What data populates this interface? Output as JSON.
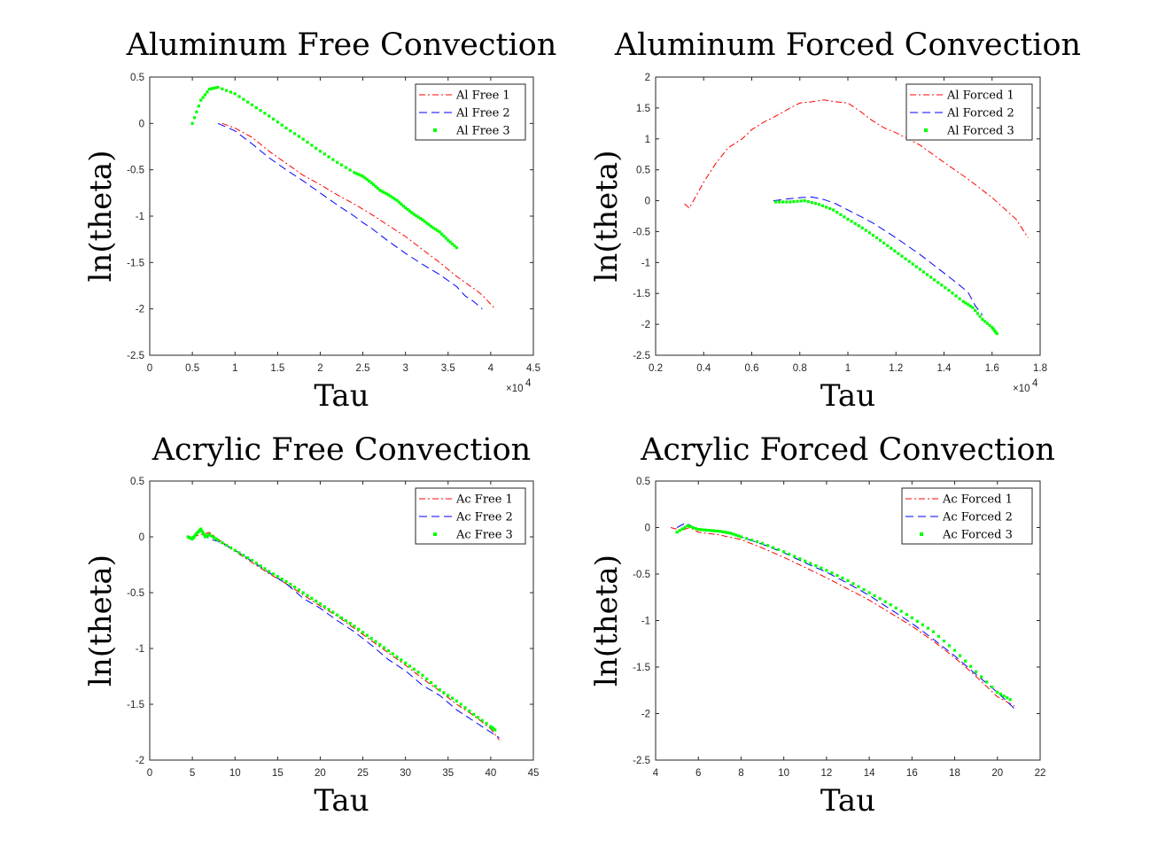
{
  "chart_data": [
    {
      "type": "line",
      "title": "Aluminum Free Convection",
      "xlabel": "Tau",
      "ylabel": "ln(theta)",
      "xlim": [
        0,
        45000
      ],
      "ylim": [
        -2.5,
        0.5
      ],
      "x_ticks": [
        0,
        5000,
        10000,
        15000,
        20000,
        25000,
        30000,
        35000,
        40000,
        45000
      ],
      "x_tick_labels": [
        "0",
        "0.5",
        "1",
        "1.5",
        "2",
        "2.5",
        "3",
        "3.5",
        "4",
        "4.5"
      ],
      "y_ticks": [
        -2.5,
        -2,
        -1.5,
        -1,
        -0.5,
        0,
        0.5
      ],
      "y_tick_labels": [
        "-2.5",
        "-2",
        "-1.5",
        "-1",
        "-0.5",
        "0",
        "0.5"
      ],
      "x_exponent": "×10",
      "x_exponent_power": "4",
      "legend_position": "top-right",
      "series": [
        {
          "name": "Al Free 1",
          "style": "dashdot",
          "color": "#ff0000",
          "x": [
            8500,
            10000,
            12000,
            14000,
            16000,
            18000,
            20000,
            22000,
            24000,
            26000,
            28000,
            30000,
            32000,
            34000,
            36000,
            38000,
            39000,
            40000,
            40500
          ],
          "y": [
            0,
            -0.05,
            -0.15,
            -0.3,
            -0.43,
            -0.56,
            -0.66,
            -0.77,
            -0.87,
            -0.98,
            -1.1,
            -1.22,
            -1.36,
            -1.5,
            -1.65,
            -1.78,
            -1.85,
            -1.95,
            -2.0
          ]
        },
        {
          "name": "Al Free 2",
          "style": "dashed",
          "color": "#0000ff",
          "x": [
            8000,
            10000,
            12000,
            14000,
            16000,
            18000,
            20000,
            22000,
            24000,
            25000,
            26000,
            28000,
            30000,
            32000,
            34000,
            36000,
            37000,
            38000,
            39000
          ],
          "y": [
            0,
            -0.08,
            -0.22,
            -0.37,
            -0.5,
            -0.62,
            -0.75,
            -0.88,
            -1.0,
            -1.07,
            -1.13,
            -1.27,
            -1.4,
            -1.52,
            -1.63,
            -1.76,
            -1.86,
            -1.92,
            -2.0
          ]
        },
        {
          "name": "Al Free 3",
          "style": "markers",
          "color": "#00ff00",
          "x": [
            5000,
            6000,
            7000,
            8000,
            10000,
            12000,
            14000,
            16000,
            18000,
            20000,
            22000,
            24000,
            25000,
            26000,
            27000,
            28000,
            29000,
            30000,
            31000,
            32000,
            33000,
            34000,
            35000,
            36000
          ],
          "y": [
            0,
            0.25,
            0.37,
            0.39,
            0.32,
            0.2,
            0.08,
            -0.05,
            -0.17,
            -0.3,
            -0.42,
            -0.53,
            -0.57,
            -0.64,
            -0.72,
            -0.77,
            -0.83,
            -0.91,
            -0.98,
            -1.04,
            -1.11,
            -1.17,
            -1.26,
            -1.34
          ]
        }
      ]
    },
    {
      "type": "line",
      "title": "Aluminum Forced Convection",
      "xlabel": "Tau",
      "ylabel": "ln(theta)",
      "xlim": [
        2000,
        18000
      ],
      "ylim": [
        -2.5,
        2
      ],
      "x_ticks": [
        2000,
        4000,
        6000,
        8000,
        10000,
        12000,
        14000,
        16000,
        18000
      ],
      "x_tick_labels": [
        "0.2",
        "0.4",
        "0.6",
        "0.8",
        "1",
        "1.2",
        "1.4",
        "1.6",
        "1.8"
      ],
      "y_ticks": [
        -2.5,
        -2,
        -1.5,
        -1,
        -0.5,
        0,
        0.5,
        1,
        1.5,
        2
      ],
      "y_tick_labels": [
        "-2.5",
        "-2",
        "-1.5",
        "-1",
        "-0.5",
        "0",
        "0.5",
        "1",
        "1.5",
        "2"
      ],
      "x_exponent": "×10",
      "x_exponent_power": "4",
      "legend_position": "top-right",
      "series": [
        {
          "name": "Al Forced 1",
          "style": "dashdot",
          "color": "#ff0000",
          "x": [
            3200,
            3400,
            4000,
            4500,
            5000,
            5600,
            6000,
            6500,
            7000,
            7600,
            8000,
            8500,
            9000,
            9500,
            10000,
            10500,
            11000,
            11500,
            12000,
            13000,
            14000,
            15000,
            16000,
            17000,
            17500
          ],
          "y": [
            -0.05,
            -0.12,
            0.3,
            0.6,
            0.85,
            1.0,
            1.15,
            1.27,
            1.37,
            1.5,
            1.58,
            1.6,
            1.63,
            1.6,
            1.58,
            1.45,
            1.3,
            1.18,
            1.1,
            0.9,
            0.62,
            0.35,
            0.05,
            -0.3,
            -0.6
          ]
        },
        {
          "name": "Al Forced 2",
          "style": "dashed",
          "color": "#0000ff",
          "x": [
            6900,
            7500,
            8000,
            8500,
            9000,
            9500,
            10000,
            11000,
            12000,
            13000,
            14000,
            14500,
            15000,
            15300,
            15600
          ],
          "y": [
            0,
            0.03,
            0.05,
            0.06,
            0.02,
            -0.05,
            -0.15,
            -0.35,
            -0.6,
            -0.87,
            -1.17,
            -1.32,
            -1.48,
            -1.7,
            -1.85
          ]
        },
        {
          "name": "Al Forced 3",
          "style": "markers",
          "color": "#00ff00",
          "x": [
            7000,
            7600,
            8200,
            8800,
            9400,
            10000,
            10600,
            11200,
            11800,
            12400,
            13000,
            13600,
            14200,
            14800,
            15200,
            15600,
            16000,
            16200
          ],
          "y": [
            -0.02,
            -0.02,
            0.0,
            -0.06,
            -0.15,
            -0.3,
            -0.44,
            -0.6,
            -0.77,
            -0.94,
            -1.11,
            -1.28,
            -1.45,
            -1.63,
            -1.73,
            -1.92,
            -2.05,
            -2.15
          ]
        }
      ]
    },
    {
      "type": "line",
      "title": "Acrylic Free Convection",
      "xlabel": "Tau",
      "ylabel": "ln(theta)",
      "xlim": [
        0,
        45
      ],
      "ylim": [
        -2,
        0.5
      ],
      "x_ticks": [
        0,
        5,
        10,
        15,
        20,
        25,
        30,
        35,
        40,
        45
      ],
      "x_tick_labels": [
        "0",
        "5",
        "10",
        "15",
        "20",
        "25",
        "30",
        "35",
        "40",
        "45"
      ],
      "y_ticks": [
        -2,
        -1.5,
        -1,
        -0.5,
        0,
        0.5
      ],
      "y_tick_labels": [
        "-2",
        "-1.5",
        "-1",
        "-0.5",
        "0",
        "0.5"
      ],
      "legend_position": "top-right",
      "series": [
        {
          "name": "Ac Free 1",
          "style": "dashdot",
          "color": "#ff0000",
          "x": [
            5,
            6,
            7,
            8,
            10,
            12,
            14,
            16,
            18,
            20,
            22,
            24,
            26,
            28,
            30,
            32,
            34,
            36,
            38,
            40,
            41
          ],
          "y": [
            0,
            0.02,
            0.04,
            -0.02,
            -0.13,
            -0.23,
            -0.33,
            -0.42,
            -0.52,
            -0.62,
            -0.71,
            -0.82,
            -0.93,
            -1.04,
            -1.15,
            -1.27,
            -1.38,
            -1.5,
            -1.6,
            -1.72,
            -1.82
          ]
        },
        {
          "name": "Ac Free 2",
          "style": "dashed",
          "color": "#0000ff",
          "x": [
            5,
            6,
            7,
            8,
            10,
            12,
            14,
            16,
            18,
            20,
            22,
            24,
            26,
            28,
            30,
            32,
            34,
            36,
            38,
            40,
            41
          ],
          "y": [
            0,
            0.05,
            -0.02,
            -0.04,
            -0.12,
            -0.22,
            -0.32,
            -0.42,
            -0.55,
            -0.64,
            -0.75,
            -0.85,
            -0.97,
            -1.1,
            -1.2,
            -1.33,
            -1.42,
            -1.55,
            -1.65,
            -1.75,
            -1.8
          ]
        },
        {
          "name": "Ac Free 3",
          "style": "markers",
          "color": "#00ff00",
          "x": [
            4.5,
            5,
            5.5,
            6,
            6.5,
            7,
            8,
            10,
            12,
            14,
            16,
            18,
            20,
            22,
            24,
            26,
            28,
            30,
            32,
            34,
            36,
            38,
            40,
            40.5
          ],
          "y": [
            0,
            -0.02,
            0.03,
            0.07,
            0.0,
            0.02,
            -0.03,
            -0.12,
            -0.21,
            -0.31,
            -0.4,
            -0.5,
            -0.6,
            -0.7,
            -0.8,
            -0.91,
            -1.02,
            -1.13,
            -1.24,
            -1.37,
            -1.47,
            -1.59,
            -1.7,
            -1.73
          ]
        }
      ]
    },
    {
      "type": "line",
      "title": "Acrylic Forced Convection",
      "xlabel": "Tau",
      "ylabel": "ln(theta)",
      "xlim": [
        4,
        22
      ],
      "ylim": [
        -2.5,
        0.5
      ],
      "x_ticks": [
        4,
        6,
        8,
        10,
        12,
        14,
        16,
        18,
        20,
        22
      ],
      "x_tick_labels": [
        "4",
        "6",
        "8",
        "10",
        "12",
        "14",
        "16",
        "18",
        "20",
        "22"
      ],
      "y_ticks": [
        -2.5,
        -2,
        -1.5,
        -1,
        -0.5,
        0,
        0.5
      ],
      "y_tick_labels": [
        "-2.5",
        "-2",
        "-1.5",
        "-1",
        "-0.5",
        "0",
        "0.5"
      ],
      "legend_position": "top-right",
      "series": [
        {
          "name": "Ac Forced 1",
          "style": "dashdot",
          "color": "#ff0000",
          "x": [
            4.7,
            5.2,
            5.6,
            6,
            7,
            8,
            9,
            10,
            11,
            12,
            13,
            14,
            15,
            16,
            17,
            18,
            19,
            20,
            20.8
          ],
          "y": [
            0,
            -0.03,
            0.0,
            -0.05,
            -0.08,
            -0.13,
            -0.22,
            -0.32,
            -0.43,
            -0.54,
            -0.66,
            -0.78,
            -0.92,
            -1.06,
            -1.22,
            -1.4,
            -1.6,
            -1.82,
            -1.92
          ]
        },
        {
          "name": "Ac Forced 2",
          "style": "dashed",
          "color": "#0000ff",
          "x": [
            5,
            5.4,
            5.8,
            6.2,
            7,
            8,
            9,
            10,
            11,
            12,
            13,
            14,
            15,
            16,
            17,
            18,
            19,
            20,
            20.9
          ],
          "y": [
            0,
            0.05,
            0.0,
            -0.02,
            -0.04,
            -0.1,
            -0.18,
            -0.27,
            -0.38,
            -0.48,
            -0.6,
            -0.73,
            -0.88,
            -1.03,
            -1.2,
            -1.38,
            -1.58,
            -1.77,
            -1.97
          ]
        },
        {
          "name": "Ac Forced 3",
          "style": "markers",
          "color": "#00ff00",
          "x": [
            5,
            5.5,
            6,
            6.5,
            7,
            7.5,
            8,
            9,
            10,
            11,
            12,
            13,
            14,
            15,
            16,
            17,
            18,
            19,
            20,
            20.6
          ],
          "y": [
            -0.05,
            0.02,
            -0.02,
            -0.03,
            -0.04,
            -0.06,
            -0.1,
            -0.17,
            -0.26,
            -0.36,
            -0.46,
            -0.57,
            -0.7,
            -0.83,
            -0.97,
            -1.12,
            -1.32,
            -1.55,
            -1.77,
            -1.85
          ]
        }
      ]
    }
  ]
}
